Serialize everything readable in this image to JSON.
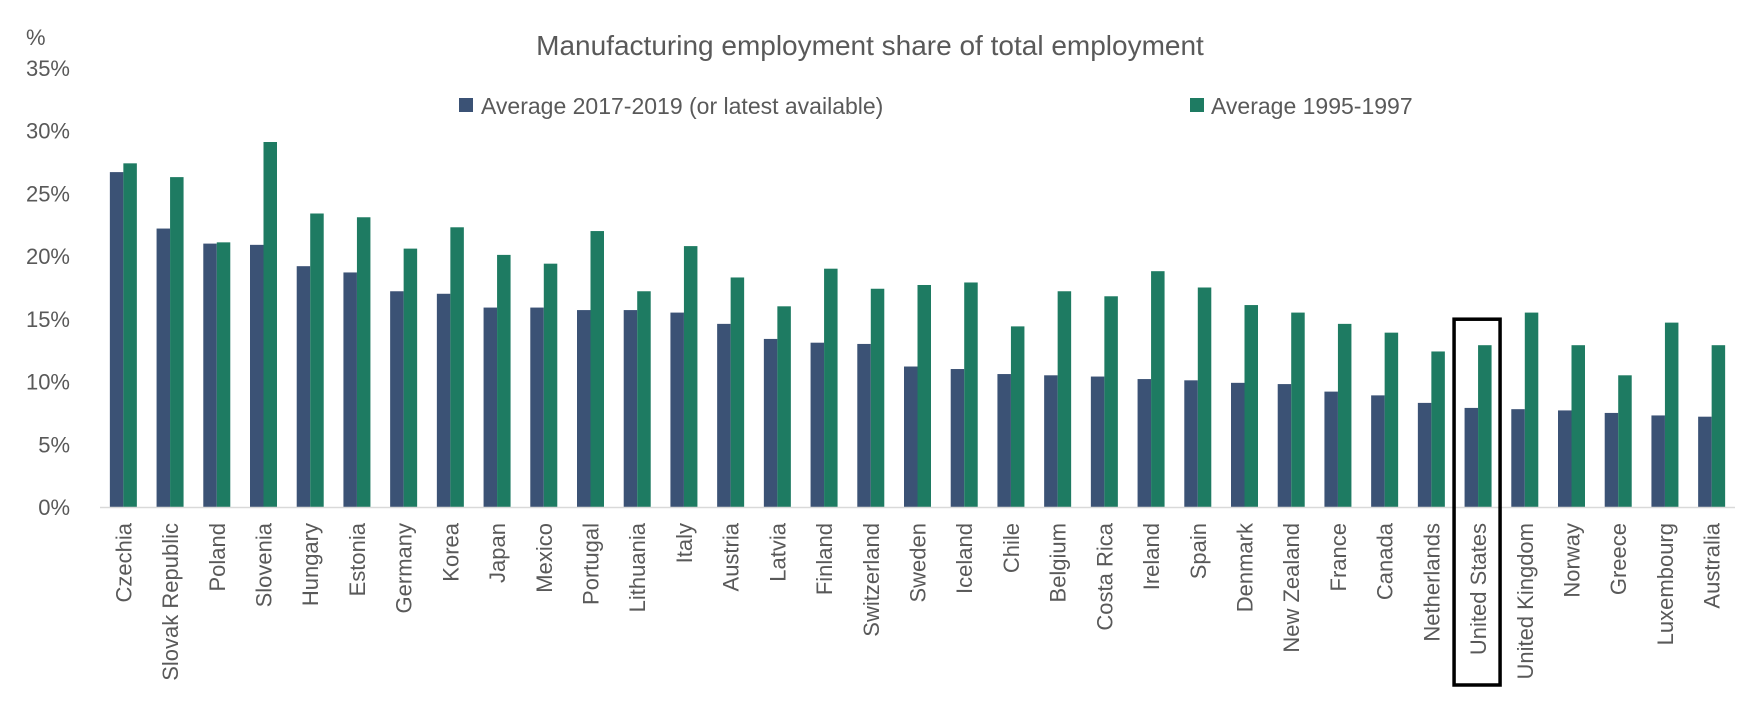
{
  "chart_data": {
    "type": "bar",
    "title": "Manufacturing employment share of total employment",
    "y_unit_label": "%",
    "ylim": [
      0,
      35
    ],
    "y_ticks": [
      "0%",
      "5%",
      "10%",
      "15%",
      "20%",
      "25%",
      "30%",
      "35%"
    ],
    "y_tick_values": [
      0,
      5,
      10,
      15,
      20,
      25,
      30,
      35
    ],
    "grid": false,
    "legend_placement": "top",
    "categories": [
      "Czechia",
      "Slovak Republic",
      "Poland",
      "Slovenia",
      "Hungary",
      "Estonia",
      "Germany",
      "Korea",
      "Japan",
      "Mexico",
      "Portugal",
      "Lithuania",
      "Italy",
      "Austria",
      "Latvia",
      "Finland",
      "Switzerland",
      "Sweden",
      "Iceland",
      "Chile",
      "Belgium",
      "Costa Rica",
      "Ireland",
      "Spain",
      "Denmark",
      "New Zealand",
      "France",
      "Canada",
      "Netherlands",
      "United States",
      "United Kingdom",
      "Norway",
      "Greece",
      "Luxembourg",
      "Australia"
    ],
    "highlighted_category": "United States",
    "series": [
      {
        "name": "Average 2017-2019 (or latest available)",
        "color": "#3B5275",
        "values": [
          26.7,
          22.2,
          21.0,
          20.9,
          19.2,
          18.7,
          17.2,
          17.0,
          15.9,
          15.9,
          15.7,
          15.7,
          15.5,
          14.6,
          13.4,
          13.1,
          13.0,
          11.2,
          11.0,
          10.6,
          10.5,
          10.4,
          10.2,
          10.1,
          9.9,
          9.8,
          9.2,
          8.9,
          8.3,
          7.9,
          7.8,
          7.7,
          7.5,
          7.3,
          7.2
        ]
      },
      {
        "name": "Average 1995-1997",
        "color": "#1E7B62",
        "values": [
          27.4,
          26.3,
          21.1,
          29.1,
          23.4,
          23.1,
          20.6,
          22.3,
          20.1,
          19.4,
          22.0,
          17.2,
          20.8,
          18.3,
          16.0,
          19.0,
          17.4,
          17.7,
          17.9,
          14.4,
          17.2,
          16.8,
          18.8,
          17.5,
          16.1,
          15.5,
          14.6,
          13.9,
          12.4,
          12.9,
          15.5,
          12.9,
          10.5,
          14.7,
          12.9
        ]
      }
    ]
  }
}
